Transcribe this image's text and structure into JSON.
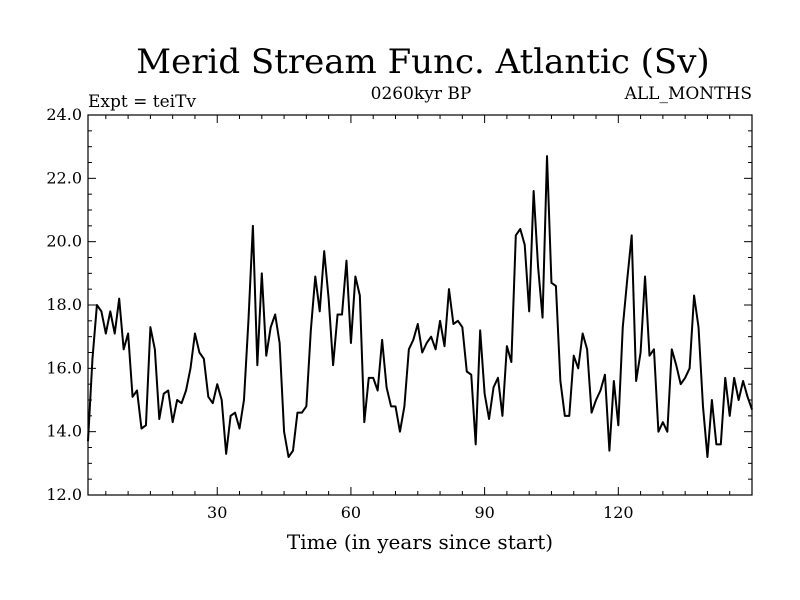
{
  "chart_data": {
    "type": "line",
    "title": "Merid Stream Func. Atlantic (Sv)",
    "subtitle_left": "Expt = teiTv",
    "subtitle_center": "0260kyr BP",
    "subtitle_right": "ALL_MONTHS",
    "xlabel": "Time (in years since start)",
    "ylabel": "",
    "xlim": [
      1,
      150
    ],
    "ylim": [
      12.0,
      24.0
    ],
    "xticks": [
      30,
      60,
      90,
      120
    ],
    "yticks": [
      "12.0",
      "14.0",
      "16.0",
      "18.0",
      "20.0",
      "22.0",
      "24.0"
    ],
    "series": [
      {
        "values": [
          13.7,
          16.3,
          18.0,
          17.8,
          17.1,
          17.8,
          17.1,
          18.2,
          16.6,
          17.1,
          15.1,
          15.3,
          14.1,
          14.2,
          17.3,
          16.6,
          14.4,
          15.2,
          15.3,
          14.3,
          15.0,
          14.9,
          15.3,
          16.0,
          17.1,
          16.5,
          16.3,
          15.1,
          14.9,
          15.5,
          15.0,
          13.3,
          14.5,
          14.6,
          14.1,
          15.0,
          17.5,
          20.5,
          16.1,
          19.0,
          16.4,
          17.3,
          17.7,
          16.8,
          14.0,
          13.2,
          13.4,
          14.6,
          14.6,
          14.8,
          17.2,
          18.9,
          17.8,
          19.7,
          18.2,
          16.1,
          17.7,
          17.7,
          19.4,
          16.8,
          18.9,
          18.3,
          14.3,
          15.7,
          15.7,
          15.3,
          16.9,
          15.4,
          14.8,
          14.8,
          14.0,
          14.8,
          16.6,
          16.9,
          17.4,
          16.5,
          16.8,
          17.0,
          16.6,
          17.5,
          16.7,
          18.5,
          17.4,
          17.5,
          17.3,
          15.9,
          15.8,
          13.6,
          17.2,
          15.2,
          14.4,
          15.4,
          15.7,
          14.5,
          16.7,
          16.2,
          20.2,
          20.4,
          19.9,
          17.8,
          21.6,
          19.2,
          17.6,
          22.7,
          18.7,
          18.6,
          15.6,
          14.5,
          14.5,
          16.4,
          16.0,
          17.1,
          16.6,
          14.6,
          15.0,
          15.3,
          15.8,
          13.4,
          15.6,
          14.2,
          17.3,
          18.8,
          20.2,
          15.6,
          16.5,
          18.9,
          16.4,
          16.6,
          14.0,
          14.3,
          14.0,
          16.6,
          16.1,
          15.5,
          15.7,
          16.0,
          18.3,
          17.3,
          14.8,
          13.2,
          15.0,
          13.6,
          13.6,
          15.7,
          14.5,
          15.7,
          15.0,
          15.6,
          15.1,
          14.7
        ]
      }
    ]
  }
}
